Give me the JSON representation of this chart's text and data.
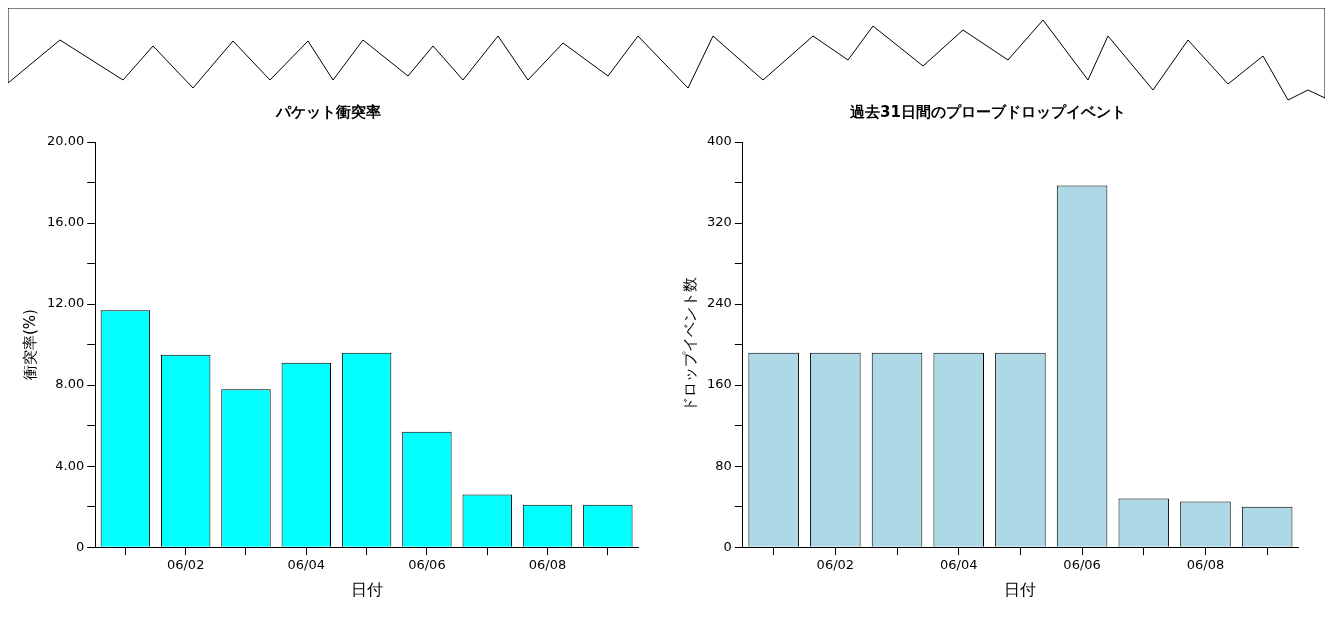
{
  "chart_data": [
    {
      "type": "bar",
      "title": "パケット衝突率",
      "xlabel": "日付",
      "ylabel": "衝突率(%)",
      "categories": [
        null,
        "06/02",
        null,
        "06/04",
        null,
        "06/06",
        null,
        "06/08",
        null
      ],
      "values": [
        11.7,
        9.5,
        7.8,
        9.1,
        9.6,
        5.7,
        2.6,
        2.1,
        2.1
      ],
      "color": "#00ffff",
      "ylim": [
        0,
        20
      ],
      "yticks": [
        0,
        {
          "value": 2,
          "label": null
        },
        {
          "value": 4,
          "label": "4.00"
        },
        {
          "value": 6,
          "label": null
        },
        {
          "value": 8,
          "label": "8.00"
        },
        {
          "value": 10,
          "label": null
        },
        {
          "value": 12,
          "label": "12.00"
        },
        {
          "value": 14,
          "label": null
        },
        {
          "value": 16,
          "label": "16.00"
        },
        {
          "value": 18,
          "label": null
        },
        {
          "value": 20,
          "label": "20.00"
        }
      ],
      "grid": false,
      "legend": false
    },
    {
      "type": "bar",
      "title": "過去31日間のプローブドロップイベント",
      "xlabel": "日付",
      "ylabel": "ドロップイベント数",
      "categories": [
        null,
        "06/02",
        null,
        "06/04",
        null,
        "06/06",
        null,
        "06/08",
        null
      ],
      "values": [
        192,
        192,
        192,
        192,
        192,
        357,
        48,
        45,
        40
      ],
      "color": "#add8e6",
      "ylim": [
        0,
        400
      ],
      "yticks": [
        0,
        {
          "value": 40,
          "label": null
        },
        80,
        {
          "value": 120,
          "label": null
        },
        160,
        {
          "value": 200,
          "label": null
        },
        240,
        {
          "value": 280,
          "label": null
        },
        320,
        {
          "value": 360,
          "label": null
        },
        400
      ],
      "grid": false,
      "legend": false
    }
  ]
}
